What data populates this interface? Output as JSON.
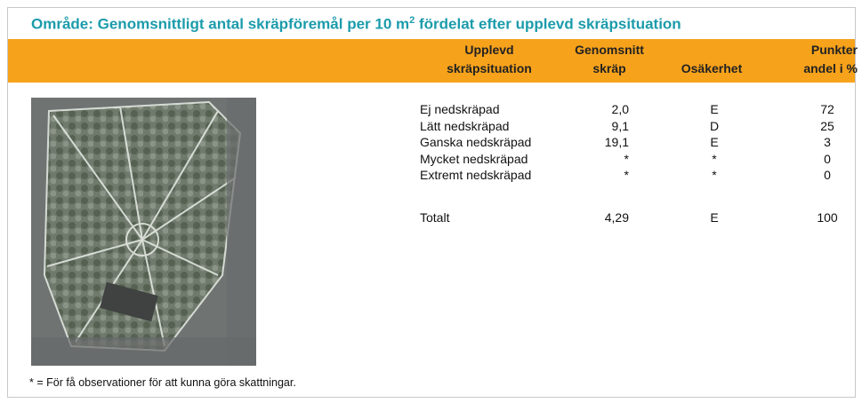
{
  "header": {
    "title_before": "Område: Genomsnittligt antal skräpföremål per 10 m",
    "title_sup": "2",
    "title_after": " fördelat efter upplevd skräpsituation"
  },
  "table": {
    "columns": [
      [
        "Upplevd",
        "skräpsituation"
      ],
      [
        "Genomsnitt",
        "skräp"
      ],
      [
        "Osäkerhet"
      ],
      [
        "Punkter",
        "andel i %"
      ]
    ],
    "rows": [
      [
        "Ej nedskräpad",
        "2,0",
        "E",
        "72"
      ],
      [
        "Lätt nedskräpad",
        "9,1",
        "D",
        "25"
      ],
      [
        "Ganska nedskräpad",
        "19,1",
        "E",
        "3"
      ],
      [
        "Mycket nedskräpad",
        "*",
        "*",
        "0"
      ],
      [
        "Extremt nedskräpad",
        "*",
        "*",
        "0"
      ]
    ],
    "total": [
      "Totalt",
      "4,29",
      "E",
      "100"
    ]
  },
  "footnote": "* = För få observationer för att kunna göra skattningar."
}
